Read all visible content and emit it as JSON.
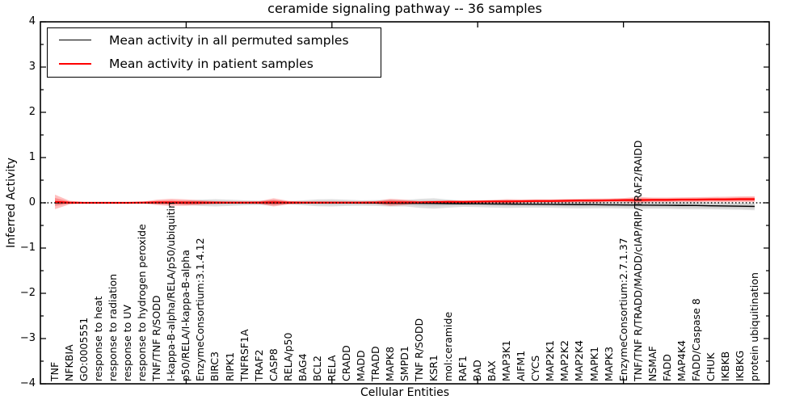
{
  "figure": {
    "title": "ceramide signaling pathway -- 36 samples",
    "xlabel": "Cellular Entities",
    "ylabel": "Inferred Activity"
  },
  "legend": {
    "entries": [
      {
        "label": "Mean activity in all permuted samples",
        "color": "#000000"
      },
      {
        "label": "Mean activity in patient samples",
        "color": "#ff0000"
      }
    ]
  },
  "chart_data": {
    "type": "line",
    "title": "ceramide signaling pathway -- 36 samples",
    "xlabel": "Cellular Entities",
    "ylabel": "Inferred Activity",
    "ylim": [
      -4,
      4
    ],
    "xlim": [
      0,
      50
    ],
    "yticks": [
      4,
      3,
      2,
      1,
      0,
      -1,
      -2,
      -3,
      -4
    ],
    "y_minor_step": 0.5,
    "x_major_ticks": [
      10,
      20,
      30,
      40
    ],
    "grid": false,
    "legend_position": "upper left",
    "zero_reference_line": {
      "style": "dotted",
      "color": "#000000",
      "y": 0
    },
    "categories": [
      "TNF",
      "NFKBIA",
      "GO:0005551",
      "response to heat",
      "response to radiation",
      "response to UV",
      "response to hydrogen peroxide",
      "TNF/TNF R/SODD",
      "I-kappa-B-alpha/RELA/p50/ubiquitin",
      "p50/RELA/I-kappa-B-alpha",
      "EnzymeConsortium:3.1.4.12",
      "BIRC3",
      "RIPK1",
      "TNFRSF1A",
      "TRAF2",
      "CASP8",
      "RELA/p50",
      "BAG4",
      "BCL2",
      "RELA",
      "CRADD",
      "MADD",
      "TRADD",
      "MAPK8",
      "SMPD1",
      "TNF R/SODD",
      "KSR1",
      "mol:ceramide",
      "RAF1",
      "BAD",
      "BAX",
      "MAP3K1",
      "AIFM1",
      "CYCS",
      "MAP2K1",
      "MAP2K2",
      "MAP2K4",
      "MAPK1",
      "MAPK3",
      "EnzymeConsortium:2.7.1.37",
      "TNF/TNF R/TRADD/MADD/cIAP/RIP/TRAF2/RAIDD",
      "NSMAF",
      "FADD",
      "MAP4K4",
      "FADD/Caspase 8",
      "CHUK",
      "IKBKB",
      "IKBKG",
      "protein ubiquitination"
    ],
    "series": [
      {
        "name": "Mean activity in all permuted samples",
        "color": "#000000",
        "band_color": "rgba(0,0,0,0.13)",
        "values": [
          0,
          0,
          0,
          0,
          0,
          0,
          0,
          0,
          0,
          0,
          0,
          0,
          0,
          0,
          0,
          0,
          0,
          0,
          0,
          0,
          0,
          -0.005,
          -0.005,
          -0.008,
          -0.01,
          -0.012,
          -0.015,
          -0.018,
          -0.02,
          -0.022,
          -0.025,
          -0.028,
          -0.03,
          -0.032,
          -0.035,
          -0.038,
          -0.04,
          -0.042,
          -0.045,
          -0.048,
          -0.05,
          -0.052,
          -0.055,
          -0.058,
          -0.06,
          -0.065,
          -0.07,
          -0.075,
          -0.08
        ],
        "band_half_width": [
          0.005,
          0.008,
          0.01,
          0.01,
          0.012,
          0.012,
          0.015,
          0.02,
          0.03,
          0.05,
          0.07,
          0.08,
          0.07,
          0.055,
          0.05,
          0.06,
          0.035,
          0.055,
          0.075,
          0.08,
          0.07,
          0.06,
          0.065,
          0.075,
          0.07,
          0.1,
          0.115,
          0.09,
          0.07,
          0.075,
          0.08,
          0.085,
          0.08,
          0.075,
          0.075,
          0.08,
          0.085,
          0.08,
          0.075,
          0.08,
          0.085,
          0.08,
          0.08,
          0.085,
          0.085,
          0.08,
          0.08,
          0.08,
          0.085
        ]
      },
      {
        "name": "Mean activity in patient samples",
        "color": "#ff0000",
        "band_color": "rgba(255,0,0,0.25)",
        "values": [
          0.02,
          0.005,
          0,
          0,
          0,
          0,
          0.005,
          0.01,
          0.01,
          0.005,
          0.005,
          0.005,
          0.005,
          0.005,
          0.005,
          0.01,
          0.005,
          0.005,
          0.005,
          0.005,
          0.005,
          0.005,
          0.008,
          0.01,
          0.01,
          0.01,
          0.015,
          0.02,
          0.02,
          0.025,
          0.03,
          0.03,
          0.035,
          0.04,
          0.04,
          0.045,
          0.05,
          0.05,
          0.055,
          0.06,
          0.06,
          0.065,
          0.065,
          0.07,
          0.07,
          0.075,
          0.075,
          0.08,
          0.08
        ],
        "band_half_width": [
          0.16,
          0.04,
          0.015,
          0.01,
          0.01,
          0.015,
          0.02,
          0.06,
          0.08,
          0.07,
          0.05,
          0.03,
          0.02,
          0.02,
          0.03,
          0.09,
          0.04,
          0.02,
          0.02,
          0.02,
          0.02,
          0.025,
          0.03,
          0.08,
          0.06,
          0.03,
          0.03,
          0.035,
          0.03,
          0.03,
          0.035,
          0.05,
          0.04,
          0.035,
          0.035,
          0.04,
          0.04,
          0.045,
          0.04,
          0.045,
          0.07,
          0.05,
          0.05,
          0.05,
          0.055,
          0.055,
          0.06,
          0.06,
          0.065
        ]
      }
    ]
  }
}
